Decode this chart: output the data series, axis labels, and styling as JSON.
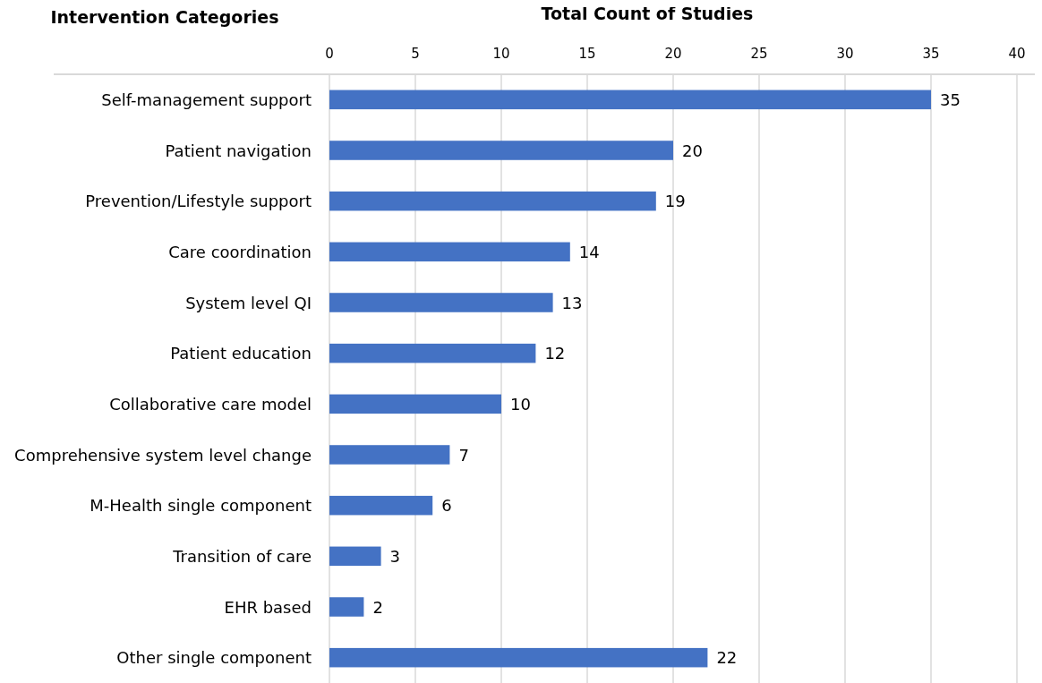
{
  "chart_data": {
    "type": "bar",
    "orientation": "horizontal",
    "xlabel": "Total Count of Studies",
    "ylabel": "Intervention Categories",
    "categories": [
      "Self-management support",
      "Patient navigation",
      "Prevention/Lifestyle support",
      "Care coordination",
      "System level QI",
      "Patient education",
      "Collaborative care model",
      "Comprehensive system level change",
      "M-Health single component",
      "Transition of care",
      "EHR based",
      "Other single component"
    ],
    "values": [
      35,
      20,
      19,
      14,
      13,
      12,
      10,
      7,
      6,
      3,
      2,
      22
    ],
    "color": "#4472c4",
    "xlim": [
      0,
      40
    ],
    "xticks": [
      0,
      5,
      10,
      15,
      20,
      25,
      30,
      35,
      40
    ],
    "grid": "x",
    "data_labels": true
  }
}
